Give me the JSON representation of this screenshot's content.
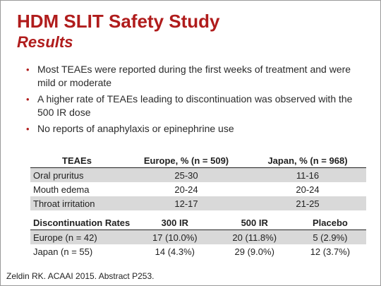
{
  "slide": {
    "title": "HDM SLIT Safety Study",
    "subtitle": "Results",
    "bullets": [
      "Most TEAEs were reported during the first weeks of treatment and were mild or moderate",
      "A higher rate of TEAEs leading to discontinuation was observed with the 500 IR dose",
      "No reports of anaphylaxis or epinephrine use"
    ],
    "teae_table": {
      "headers": [
        "TEAEs",
        "Europe, % (n = 509)",
        "Japan, % (n = 968)"
      ],
      "rows": [
        [
          "Oral pruritus",
          "25-30",
          "11-16"
        ],
        [
          "Mouth edema",
          "20-24",
          "20-24"
        ],
        [
          "Throat irritation",
          "12-17",
          "21-25"
        ]
      ]
    },
    "discontinuation_table": {
      "headers": [
        "Discontinuation Rates",
        "300 IR",
        "500 IR",
        "Placebo"
      ],
      "rows": [
        [
          "Europe (n = 42)",
          "17 (10.0%)",
          "20 (11.8%)",
          "5 (2.9%)"
        ],
        [
          "Japan (n = 55)",
          "14 (4.3%)",
          "29 (9.0%)",
          "12 (3.7%)"
        ]
      ]
    },
    "citation": "Zeldin RK. ACAAI 2015. Abstract P253.",
    "colors": {
      "title": "#b01c1c",
      "row_shade": "#d9d9d9"
    }
  }
}
